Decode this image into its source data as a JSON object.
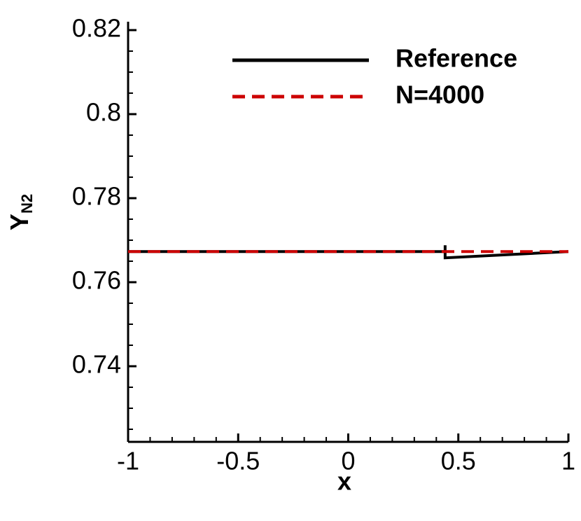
{
  "chart_data": {
    "type": "line",
    "xlabel": "x",
    "ylabel": {
      "text": "Y",
      "subscript": "N2"
    },
    "xlim": [
      -1,
      1
    ],
    "ylim": [
      0.722,
      0.822
    ],
    "xticks": [
      -1,
      -0.5,
      0,
      0.5,
      1
    ],
    "yticks": [
      0.74,
      0.76,
      0.78,
      0.8,
      0.82
    ],
    "xminorticks": [
      -0.9,
      -0.8,
      -0.7,
      -0.6,
      -0.4,
      -0.3,
      -0.2,
      -0.1,
      0.1,
      0.2,
      0.3,
      0.4,
      0.6,
      0.7,
      0.8,
      0.9
    ],
    "yminorticks": [
      0.725,
      0.73,
      0.735,
      0.745,
      0.75,
      0.755,
      0.765,
      0.77,
      0.775,
      0.785,
      0.79,
      0.795,
      0.805,
      0.81,
      0.815
    ],
    "legend": "top-right",
    "series": [
      {
        "name": "Reference",
        "color": "#000000",
        "dash": "solid",
        "x": [
          -1,
          0.44,
          0.44,
          0.44,
          1
        ],
        "values": [
          0.7673,
          0.7673,
          0.7688,
          0.7658,
          0.7673
        ]
      },
      {
        "name": "N=4000",
        "color": "#cc0000",
        "dash": "dashed",
        "x": [
          -1,
          1
        ],
        "values": [
          0.7673,
          0.7673
        ]
      }
    ]
  }
}
